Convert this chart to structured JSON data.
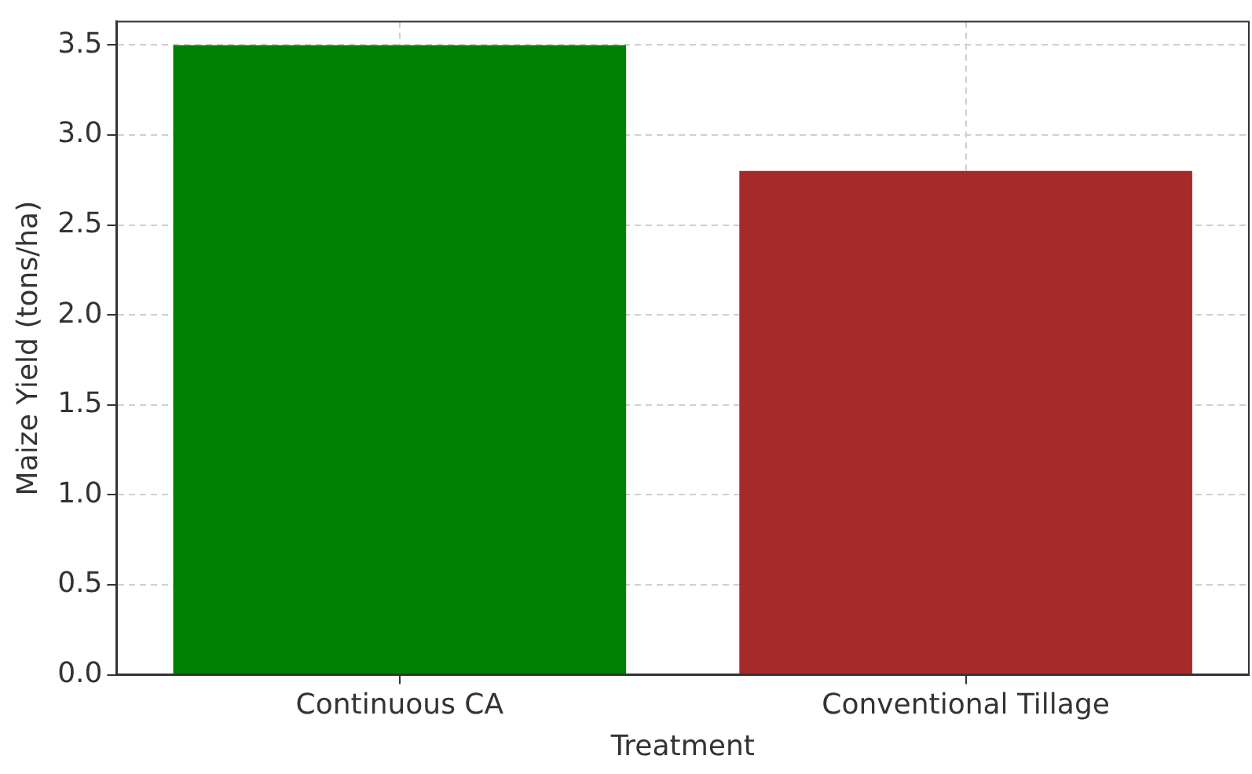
{
  "chart_data": {
    "type": "bar",
    "xlabel": "Treatment",
    "ylabel": "Maize Yield (tons/ha)",
    "categories": [
      "Continuous CA",
      "Conventional Tillage"
    ],
    "values": [
      3.5,
      2.8
    ],
    "colors": [
      "#008000",
      "#a52a2a"
    ],
    "ylim": [
      0,
      3.63
    ],
    "yticks": [
      {
        "value": 0,
        "label": "0.0"
      },
      0.5,
      {
        "value": 1,
        "label": "1.0"
      },
      1.5,
      {
        "value": 2,
        "label": "2.0"
      },
      2.5,
      {
        "value": 3,
        "label": "3.0"
      },
      3.5
    ],
    "grid": true,
    "legend": false
  }
}
